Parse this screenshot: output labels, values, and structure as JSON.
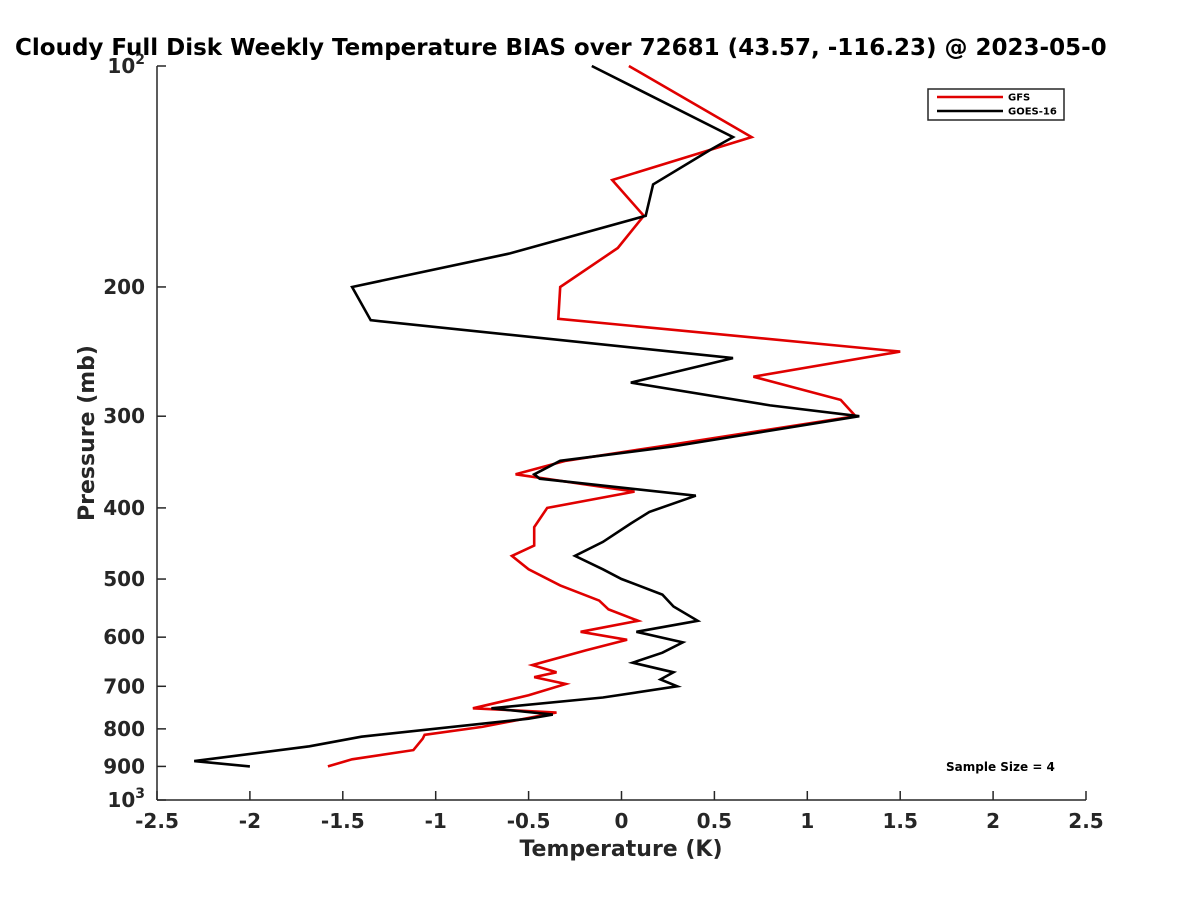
{
  "chart_data": {
    "type": "line",
    "title": "Cloudy Full Disk Weekly Temperature BIAS over 72681 (43.57, -116.23) @ 2023-05-0",
    "xlabel": "Temperature (K)",
    "ylabel": "Pressure (mb)",
    "xlim": [
      -2.5,
      2.5
    ],
    "ylim": [
      1000,
      100
    ],
    "y_scale": "log",
    "x_ticks": [
      -2.5,
      -2,
      -1.5,
      -1,
      -0.5,
      0,
      0.5,
      1,
      1.5,
      2,
      2.5
    ],
    "x_tick_labels": [
      "-2.5",
      "-2",
      "-1.5",
      "-1",
      "-0.5",
      "0",
      "0.5",
      "1",
      "1.5",
      "2",
      "2.5"
    ],
    "y_ticks": [
      100,
      200,
      300,
      400,
      500,
      600,
      700,
      800,
      900,
      1000
    ],
    "y_tick_labels": [
      {
        "value": 100,
        "base": "10",
        "exp": "2"
      },
      {
        "value": 200,
        "base": "200",
        "exp": ""
      },
      {
        "value": 300,
        "base": "300",
        "exp": ""
      },
      {
        "value": 400,
        "base": "400",
        "exp": ""
      },
      {
        "value": 500,
        "base": "500",
        "exp": ""
      },
      {
        "value": 600,
        "base": "600",
        "exp": ""
      },
      {
        "value": 700,
        "base": "700",
        "exp": ""
      },
      {
        "value": 800,
        "base": "800",
        "exp": ""
      },
      {
        "value": 900,
        "base": "900",
        "exp": ""
      },
      {
        "value": 1000,
        "base": "10",
        "exp": "3"
      }
    ],
    "grid": false,
    "legend_position": "top-right",
    "annotation": "Sample Size = 4",
    "series": [
      {
        "name": "GFS",
        "color": "#e00000",
        "points": [
          [
            0.04,
            100
          ],
          [
            0.7,
            125
          ],
          [
            -0.05,
            143
          ],
          [
            0.12,
            160
          ],
          [
            -0.02,
            177
          ],
          [
            -0.33,
            200
          ],
          [
            -0.34,
            221
          ],
          [
            1.5,
            245
          ],
          [
            0.71,
            265
          ],
          [
            1.18,
            285
          ],
          [
            1.26,
            300
          ],
          [
            0.2,
            330
          ],
          [
            -0.3,
            345
          ],
          [
            -0.57,
            360
          ],
          [
            0.07,
            380
          ],
          [
            -0.4,
            400
          ],
          [
            -0.47,
            425
          ],
          [
            -0.47,
            450
          ],
          [
            -0.59,
            465
          ],
          [
            -0.5,
            485
          ],
          [
            -0.33,
            510
          ],
          [
            -0.12,
            535
          ],
          [
            -0.07,
            550
          ],
          [
            0.09,
            570
          ],
          [
            -0.22,
            590
          ],
          [
            0.03,
            605
          ],
          [
            -0.19,
            625
          ],
          [
            -0.48,
            655
          ],
          [
            -0.35,
            670
          ],
          [
            -0.47,
            680
          ],
          [
            -0.3,
            695
          ],
          [
            -0.5,
            720
          ],
          [
            -0.8,
            750
          ],
          [
            -0.35,
            760
          ],
          [
            -0.75,
            795
          ],
          [
            -1.06,
            815
          ],
          [
            -1.07,
            825
          ],
          [
            -1.12,
            855
          ],
          [
            -1.45,
            880
          ],
          [
            -1.58,
            900
          ]
        ]
      },
      {
        "name": "GOES-16",
        "color": "#000000",
        "points": [
          [
            -0.16,
            100
          ],
          [
            0.6,
            125
          ],
          [
            0.48,
            130
          ],
          [
            0.17,
            145
          ],
          [
            0.13,
            160
          ],
          [
            -0.6,
            180
          ],
          [
            -1.45,
            200
          ],
          [
            -1.35,
            222
          ],
          [
            0.6,
            250
          ],
          [
            0.05,
            270
          ],
          [
            0.8,
            290
          ],
          [
            1.28,
            300
          ],
          [
            0.27,
            330
          ],
          [
            -0.33,
            345
          ],
          [
            -0.47,
            360
          ],
          [
            -0.44,
            365
          ],
          [
            0.4,
            385
          ],
          [
            0.15,
            405
          ],
          [
            0.05,
            420
          ],
          [
            -0.1,
            445
          ],
          [
            -0.25,
            465
          ],
          [
            -0.1,
            485
          ],
          [
            0.0,
            500
          ],
          [
            0.22,
            525
          ],
          [
            0.28,
            545
          ],
          [
            0.41,
            570
          ],
          [
            0.08,
            590
          ],
          [
            0.33,
            610
          ],
          [
            0.22,
            630
          ],
          [
            0.06,
            650
          ],
          [
            0.28,
            670
          ],
          [
            0.21,
            685
          ],
          [
            0.3,
            700
          ],
          [
            -0.1,
            725
          ],
          [
            -0.7,
            750
          ],
          [
            -0.37,
            765
          ],
          [
            -0.5,
            775
          ],
          [
            -1.4,
            820
          ],
          [
            -1.68,
            845
          ],
          [
            -2.3,
            885
          ],
          [
            -2.0,
            900
          ]
        ]
      }
    ]
  }
}
